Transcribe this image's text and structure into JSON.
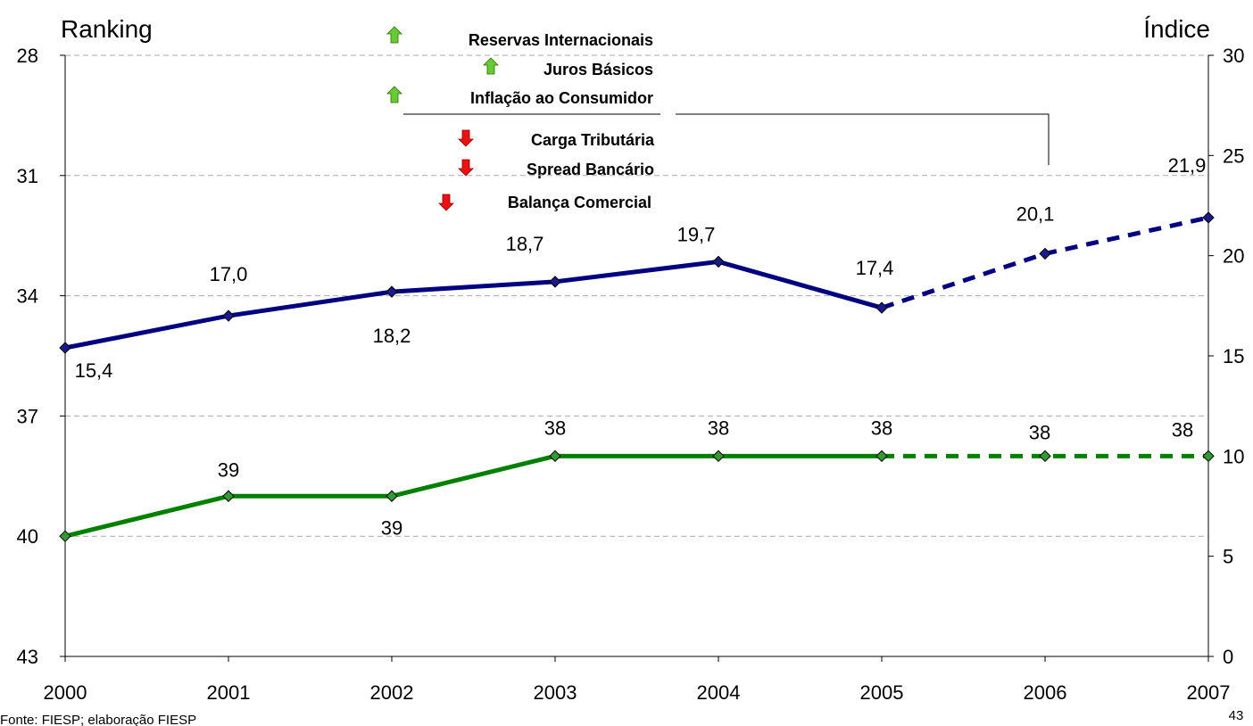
{
  "chart_data": {
    "type": "line",
    "y_axis_title": "Ranking",
    "y2_axis_title": "Índice",
    "x": [
      2000,
      2001,
      2002,
      2003,
      2004,
      2005,
      2006,
      2007
    ],
    "xlim": [
      2000,
      2007
    ],
    "ylim": [
      43,
      28
    ],
    "yticks": [
      28,
      31,
      34,
      37,
      40,
      43
    ],
    "y2lim": [
      0,
      30
    ],
    "y2ticks": [
      0,
      5,
      10,
      15,
      20,
      25,
      30
    ],
    "grid": true,
    "series": [
      {
        "color": "#000080",
        "marker_color": "#1a1a8c",
        "axis": "y2",
        "values": [
          15.4,
          17.0,
          18.2,
          18.7,
          19.7,
          17.4,
          20.1,
          21.9
        ],
        "value_labels": [
          "15,4",
          "17,0",
          "18,2",
          "18,7",
          "19,7",
          "17,4",
          "20,1",
          "21,9"
        ]
      },
      {
        "color": "#008000",
        "marker_color": "#339933",
        "values": [
          40,
          39,
          39,
          38,
          38,
          38,
          38,
          38
        ]
      }
    ],
    "annotations": {
      "up": [
        "Reservas Internacionais",
        "Juros Básicos",
        "Inflação ao Consumidor"
      ],
      "down": [
        "Carga Tributária",
        "Spread Bancário",
        "Balança Comercial"
      ]
    },
    "source": "Fonte: FIESP; elaboração FIESP",
    "page_number": "43"
  }
}
